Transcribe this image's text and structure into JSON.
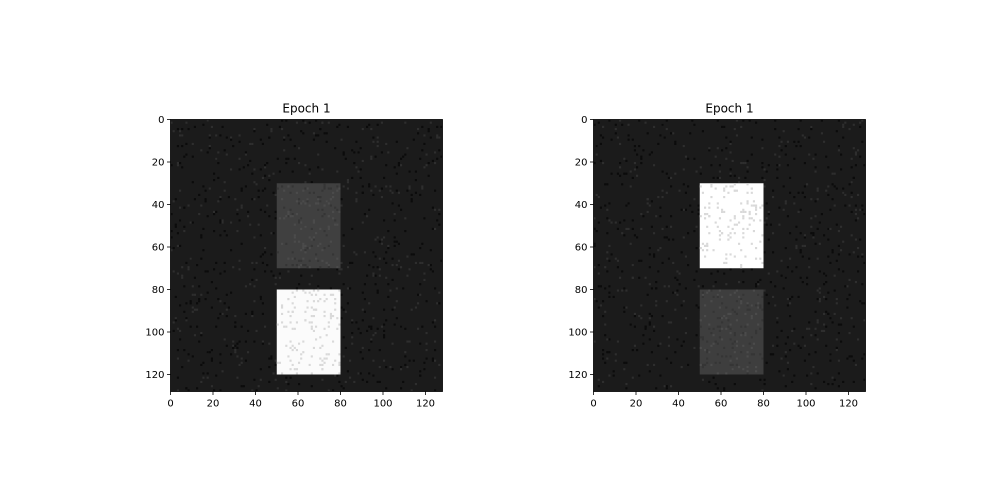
{
  "chart_data": [
    {
      "type": "heatmap",
      "title": "Epoch 1",
      "colormap": "gray",
      "image_size": [
        128,
        128
      ],
      "background_level": "dark",
      "noise": "sparse speckle",
      "xlim": [
        0,
        128
      ],
      "ylim": [
        128,
        0
      ],
      "x_ticks": [
        0,
        20,
        40,
        60,
        80,
        100,
        120
      ],
      "y_ticks": [
        0,
        20,
        40,
        60,
        80,
        100,
        120
      ],
      "x_tick_labels": [
        "0",
        "20",
        "40",
        "60",
        "80",
        "100",
        "120"
      ],
      "y_tick_labels": [
        "0",
        "20",
        "40",
        "60",
        "80",
        "100",
        "120"
      ],
      "regions": [
        {
          "x": [
            50,
            80
          ],
          "y": [
            30,
            70
          ],
          "intensity": "dim",
          "color": "#404040"
        },
        {
          "x": [
            50,
            80
          ],
          "y": [
            80,
            120
          ],
          "intensity": "bright",
          "color": "#fbfbfb"
        }
      ],
      "background_color": "#1b1b1b"
    },
    {
      "type": "heatmap",
      "title": "Epoch 1",
      "colormap": "gray",
      "image_size": [
        128,
        128
      ],
      "background_level": "dark",
      "noise": "sparse speckle",
      "xlim": [
        0,
        128
      ],
      "ylim": [
        128,
        0
      ],
      "x_ticks": [
        0,
        20,
        40,
        60,
        80,
        100,
        120
      ],
      "y_ticks": [
        0,
        20,
        40,
        60,
        80,
        100,
        120
      ],
      "x_tick_labels": [
        "0",
        "20",
        "40",
        "60",
        "80",
        "100",
        "120"
      ],
      "y_tick_labels": [
        "0",
        "20",
        "40",
        "60",
        "80",
        "100",
        "120"
      ],
      "regions": [
        {
          "x": [
            50,
            80
          ],
          "y": [
            30,
            70
          ],
          "intensity": "bright",
          "color": "#ffffff"
        },
        {
          "x": [
            50,
            80
          ],
          "y": [
            80,
            120
          ],
          "intensity": "dim",
          "color": "#3e3e3e"
        }
      ],
      "background_color": "#1b1b1b"
    }
  ]
}
